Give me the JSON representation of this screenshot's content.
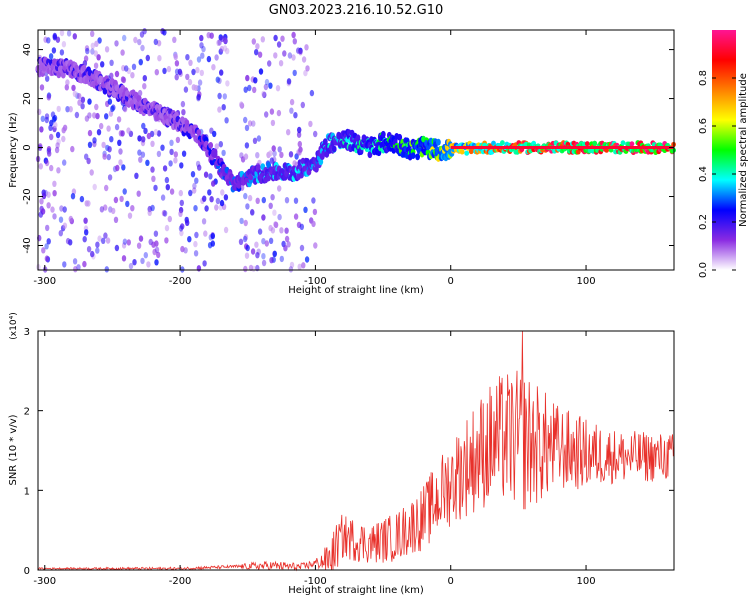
{
  "title": "GN03.2023.216.10.52.G10",
  "chart_data": [
    {
      "type": "heatmap",
      "xlabel": "Height of straight line (km)",
      "ylabel": "Frequency (Hz)",
      "xlim": [
        -305,
        165
      ],
      "ylim": [
        -50,
        48
      ],
      "xticks": [
        -300,
        -200,
        -100,
        0,
        100
      ],
      "yticks": [
        -40,
        -20,
        0,
        20,
        40
      ],
      "colorbar": {
        "label": "Normalized spectral amplitude",
        "range": [
          0,
          1
        ],
        "ticks": [
          0.0,
          0.2,
          0.4,
          0.6,
          0.8
        ],
        "colormap": [
          "#ffffff",
          "#8a2be2",
          "#0000ff",
          "#00ffff",
          "#00ff00",
          "#ffff00",
          "#ff8000",
          "#ff0000",
          "#ff1493"
        ]
      },
      "ridge_trace": [
        {
          "x": -300,
          "y": 33
        },
        {
          "x": -280,
          "y": 32
        },
        {
          "x": -260,
          "y": 27
        },
        {
          "x": -240,
          "y": 21
        },
        {
          "x": -220,
          "y": 15
        },
        {
          "x": -200,
          "y": 10
        },
        {
          "x": -185,
          "y": 4
        },
        {
          "x": -170,
          "y": -8
        },
        {
          "x": -160,
          "y": -15
        },
        {
          "x": -145,
          "y": -11
        },
        {
          "x": -130,
          "y": -10
        },
        {
          "x": -115,
          "y": -10
        },
        {
          "x": -100,
          "y": -6
        },
        {
          "x": -90,
          "y": 2
        },
        {
          "x": -75,
          "y": 3
        },
        {
          "x": -60,
          "y": 0
        },
        {
          "x": -50,
          "y": 2
        },
        {
          "x": -40,
          "y": 2
        },
        {
          "x": -30,
          "y": -1
        },
        {
          "x": -20,
          "y": 0
        },
        {
          "x": -10,
          "y": -1
        },
        {
          "x": 0,
          "y": -1
        },
        {
          "x": 20,
          "y": 0
        },
        {
          "x": 50,
          "y": 0
        },
        {
          "x": 100,
          "y": 0
        },
        {
          "x": 160,
          "y": 0
        }
      ],
      "ridge_amplitude": [
        {
          "x": -300,
          "a": 0.2
        },
        {
          "x": -200,
          "a": 0.2
        },
        {
          "x": -160,
          "a": 0.3
        },
        {
          "x": -140,
          "a": 0.35
        },
        {
          "x": -100,
          "a": 0.35
        },
        {
          "x": -80,
          "a": 0.4
        },
        {
          "x": -50,
          "a": 0.45
        },
        {
          "x": -20,
          "a": 0.55
        },
        {
          "x": 0,
          "a": 0.65
        },
        {
          "x": 30,
          "a": 0.8
        },
        {
          "x": 60,
          "a": 0.9
        },
        {
          "x": 160,
          "a": 0.95
        }
      ]
    },
    {
      "type": "line",
      "xlabel": "Height of straight line (km)",
      "ylabel": "SNR (10 * v/v)",
      "y_scale_note": "(x10⁴)",
      "xlim": [
        -305,
        165
      ],
      "ylim": [
        0,
        3
      ],
      "xticks": [
        -300,
        -200,
        -100,
        0,
        100
      ],
      "yticks": [
        0,
        1,
        2,
        3
      ],
      "color": "#e8302a",
      "envelope": [
        {
          "x": -305,
          "y": 0.02
        },
        {
          "x": -200,
          "y": 0.02
        },
        {
          "x": -150,
          "y": 0.05
        },
        {
          "x": -130,
          "y": 0.06
        },
        {
          "x": -110,
          "y": 0.04
        },
        {
          "x": -90,
          "y": 0.15
        },
        {
          "x": -80,
          "y": 0.45
        },
        {
          "x": -70,
          "y": 0.4
        },
        {
          "x": -60,
          "y": 0.35
        },
        {
          "x": -40,
          "y": 0.45
        },
        {
          "x": -20,
          "y": 0.7
        },
        {
          "x": -5,
          "y": 1.05
        },
        {
          "x": 10,
          "y": 1.35
        },
        {
          "x": 25,
          "y": 1.6
        },
        {
          "x": 40,
          "y": 1.75
        },
        {
          "x": 55,
          "y": 1.7
        },
        {
          "x": 75,
          "y": 1.6
        },
        {
          "x": 100,
          "y": 1.5
        },
        {
          "x": 130,
          "y": 1.45
        },
        {
          "x": 165,
          "y": 1.45
        }
      ],
      "noise_amplitude": [
        {
          "x": -305,
          "a": 0.01
        },
        {
          "x": -160,
          "a": 0.02
        },
        {
          "x": -140,
          "a": 0.06
        },
        {
          "x": -100,
          "a": 0.05
        },
        {
          "x": -85,
          "a": 0.3
        },
        {
          "x": -60,
          "a": 0.25
        },
        {
          "x": -30,
          "a": 0.35
        },
        {
          "x": 0,
          "a": 0.55
        },
        {
          "x": 30,
          "a": 0.8
        },
        {
          "x": 55,
          "a": 0.9
        },
        {
          "x": 80,
          "a": 0.55
        },
        {
          "x": 120,
          "a": 0.35
        },
        {
          "x": 165,
          "a": 0.3
        }
      ],
      "peak": {
        "x": 53,
        "y": 3.0
      }
    }
  ]
}
